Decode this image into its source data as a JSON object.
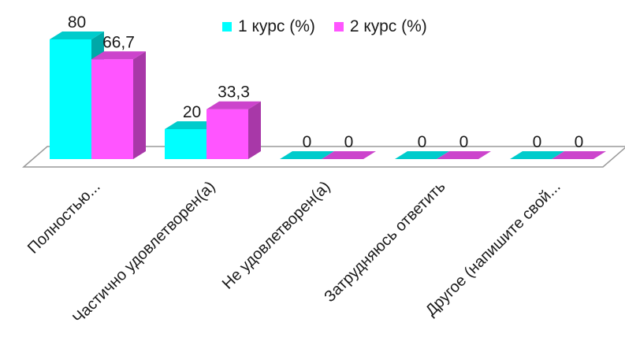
{
  "chart_data": {
    "type": "bar",
    "categories": [
      "Полностью...",
      "Частично удовлетворен(а)",
      "Не удовлетворен(а)",
      "Затрудняюсь ответить",
      "Другое (напишите свой..."
    ],
    "series": [
      {
        "name": "1 курс (%)",
        "values": [
          80,
          20,
          0,
          0,
          0
        ],
        "labels": [
          "80",
          "20",
          "0",
          "0",
          "0"
        ],
        "color": "#00ffff"
      },
      {
        "name": "2 курс (%)",
        "values": [
          66.7,
          33.3,
          0,
          0,
          0
        ],
        "labels": [
          "66,7",
          "33,3",
          "0",
          "0",
          "0"
        ],
        "color": "#ff55ff"
      }
    ],
    "ylim": [
      0,
      80
    ],
    "grid": false,
    "legend_position": "top",
    "three_d": true
  }
}
